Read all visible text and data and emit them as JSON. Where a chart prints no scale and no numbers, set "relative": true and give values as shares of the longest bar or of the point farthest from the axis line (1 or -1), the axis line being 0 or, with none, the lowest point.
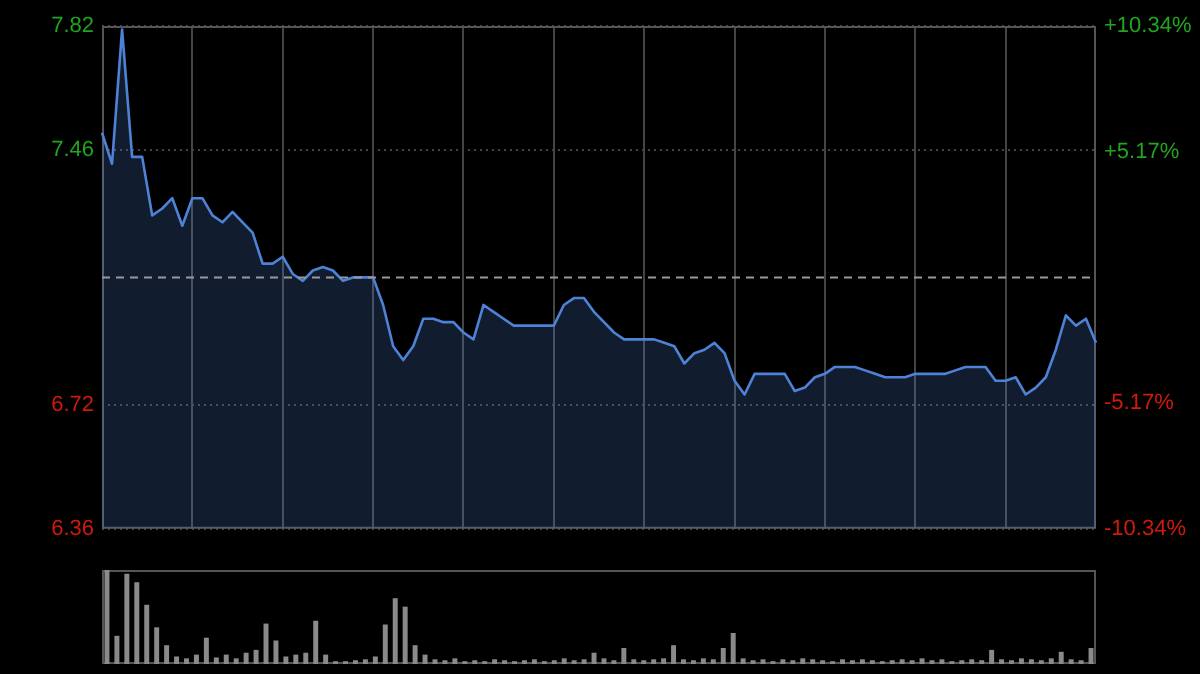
{
  "chart_data": [
    {
      "type": "area",
      "categories": [
        null,
        null,
        null,
        null,
        null,
        null,
        null,
        null,
        null,
        null,
        null,
        null,
        null,
        null,
        null,
        null,
        null,
        null,
        null,
        null,
        null,
        null,
        null,
        null,
        null,
        null,
        null,
        null,
        null,
        null,
        null,
        null,
        null,
        null,
        null,
        null,
        null,
        null,
        null,
        null,
        null,
        null,
        null,
        null,
        null,
        null,
        null,
        null,
        null,
        null,
        null,
        null,
        null,
        null,
        null,
        null,
        null,
        null,
        null,
        null,
        null,
        null,
        null,
        null,
        null,
        null,
        null,
        null,
        null,
        null,
        null,
        null,
        null,
        null,
        null,
        null,
        null,
        null,
        null,
        null,
        null,
        null,
        null,
        null,
        null,
        null,
        null,
        null,
        null,
        null,
        null,
        null,
        null,
        null,
        null,
        null,
        null,
        null,
        null,
        null
      ],
      "series": [
        {
          "color": "#4d82d6",
          "values": [
            7.51,
            7.42,
            7.81,
            7.44,
            7.44,
            7.27,
            7.29,
            7.32,
            7.24,
            7.32,
            7.32,
            7.27,
            7.25,
            7.28,
            7.25,
            7.22,
            7.13,
            7.13,
            7.15,
            7.1,
            7.08,
            7.11,
            7.12,
            7.11,
            7.08,
            7.09,
            7.09,
            7.09,
            7.01,
            6.89,
            6.85,
            6.89,
            6.97,
            6.97,
            6.96,
            6.96,
            6.93,
            6.91,
            7.01,
            6.99,
            6.97,
            6.95,
            6.95,
            6.95,
            6.95,
            6.95,
            7.01,
            7.03,
            7.03,
            6.99,
            6.96,
            6.93,
            6.91,
            6.91,
            6.91,
            6.91,
            6.9,
            6.89,
            6.84,
            6.87,
            6.88,
            6.9,
            6.87,
            6.79,
            6.75,
            6.81,
            6.81,
            6.81,
            6.81,
            6.76,
            6.77,
            6.8,
            6.81,
            6.83,
            6.83,
            6.83,
            6.82,
            6.81,
            6.8,
            6.8,
            6.8,
            6.81,
            6.81,
            6.81,
            6.81,
            6.82,
            6.83,
            6.83,
            6.83,
            6.79,
            6.79,
            6.8,
            6.75,
            6.77,
            6.8,
            6.88,
            6.98,
            6.95,
            6.97,
            6.9
          ]
        }
      ],
      "ylim": [
        6.36,
        7.82
      ],
      "yticks": [
        6.36,
        6.72,
        7.46,
        7.82
      ],
      "y2lim": [
        -10.34,
        10.34
      ],
      "y2ticks": [
        {
          "value": -10.34,
          "label": "-10.34%"
        },
        {
          "value": -5.17,
          "label": "-5.17%"
        },
        {
          "value": 5.17,
          "label": "+5.17%"
        },
        {
          "value": 10.34,
          "label": "+10.34%"
        }
      ],
      "ref_lines": [
        {
          "axis": "y",
          "value": 7.09,
          "color": "#999999",
          "line_style": "dashed"
        }
      ],
      "grid": true,
      "legend": false,
      "tick_labels": "y"
    },
    {
      "type": "bar",
      "relative": true,
      "categories": [
        null,
        null,
        null,
        null,
        null,
        null,
        null,
        null,
        null,
        null,
        null,
        null,
        null,
        null,
        null,
        null,
        null,
        null,
        null,
        null,
        null,
        null,
        null,
        null,
        null,
        null,
        null,
        null,
        null,
        null,
        null,
        null,
        null,
        null,
        null,
        null,
        null,
        null,
        null,
        null,
        null,
        null,
        null,
        null,
        null,
        null,
        null,
        null,
        null,
        null,
        null,
        null,
        null,
        null,
        null,
        null,
        null,
        null,
        null,
        null,
        null,
        null,
        null,
        null,
        null,
        null,
        null,
        null,
        null,
        null,
        null,
        null,
        null,
        null,
        null,
        null,
        null,
        null,
        null,
        null,
        null,
        null,
        null,
        null,
        null,
        null,
        null,
        null,
        null,
        null,
        null,
        null,
        null,
        null,
        null,
        null,
        null,
        null,
        null,
        null
      ],
      "color": "#8a8a8a",
      "values": [
        1.0,
        0.3,
        0.96,
        0.87,
        0.63,
        0.39,
        0.2,
        0.08,
        0.06,
        0.1,
        0.28,
        0.07,
        0.1,
        0.06,
        0.12,
        0.15,
        0.43,
        0.25,
        0.08,
        0.1,
        0.12,
        0.46,
        0.1,
        0.03,
        0.03,
        0.04,
        0.05,
        0.08,
        0.42,
        0.7,
        0.61,
        0.2,
        0.1,
        0.05,
        0.04,
        0.06,
        0.03,
        0.04,
        0.03,
        0.05,
        0.04,
        0.03,
        0.04,
        0.05,
        0.03,
        0.04,
        0.06,
        0.04,
        0.05,
        0.12,
        0.06,
        0.04,
        0.17,
        0.05,
        0.04,
        0.05,
        0.06,
        0.2,
        0.05,
        0.04,
        0.06,
        0.05,
        0.17,
        0.33,
        0.06,
        0.04,
        0.05,
        0.03,
        0.05,
        0.04,
        0.06,
        0.05,
        0.04,
        0.03,
        0.05,
        0.04,
        0.05,
        0.04,
        0.03,
        0.04,
        0.05,
        0.04,
        0.06,
        0.04,
        0.05,
        0.03,
        0.04,
        0.05,
        0.04,
        0.15,
        0.05,
        0.04,
        0.06,
        0.05,
        0.04,
        0.06,
        0.13,
        0.05,
        0.04,
        0.17
      ],
      "legend": false,
      "tick_labels": false
    }
  ]
}
